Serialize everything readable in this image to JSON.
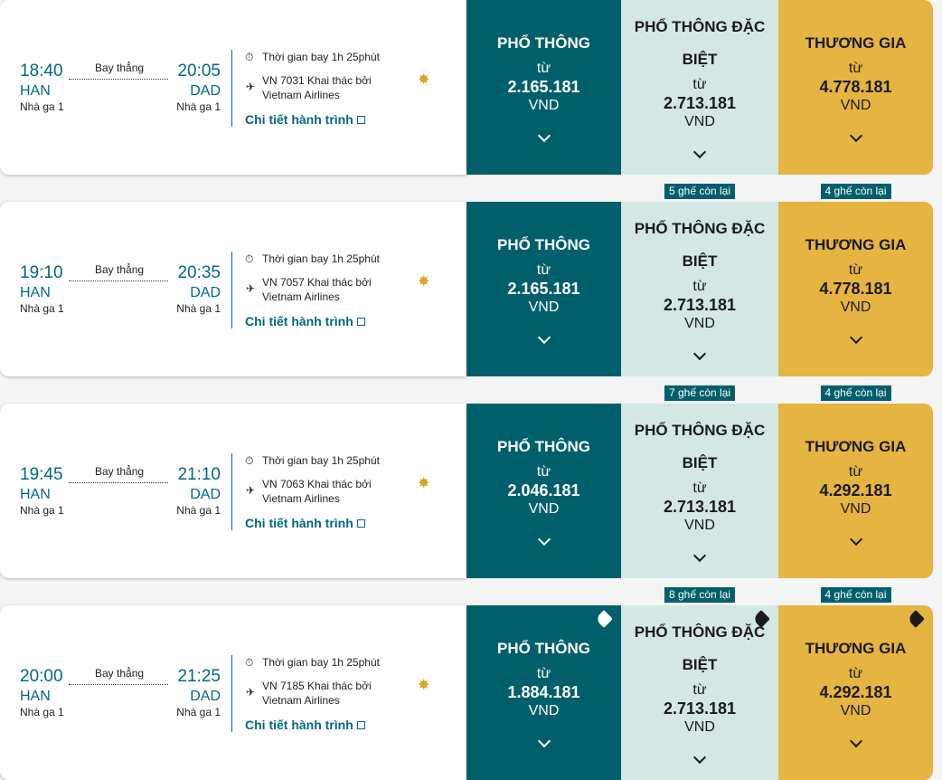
{
  "flights": [
    {
      "depart_time": "18:40",
      "origin": "HAN",
      "origin_terminal": "Nhà ga 1",
      "stop": "Bay thẳng",
      "arrive_time": "20:05",
      "destination": "DAD",
      "destination_terminal": "Nhà ga 1",
      "duration": "Thời gian bay 1h 25phút",
      "flight": "VN 7031 Khai thác bởi",
      "airline": "Vietnam Airlines",
      "details_link": "Chi tiết hành trình",
      "fares": [
        {
          "class": "PHỔ THÔNG",
          "from": "từ",
          "price": "2.165.181",
          "currency": "VND"
        },
        {
          "class": "PHỔ THÔNG ĐẶC BIỆT",
          "from": "từ",
          "price": "2.713.181",
          "currency": "VND"
        },
        {
          "class": "THƯƠNG GIA",
          "from": "từ",
          "price": "4.778.181",
          "currency": "VND"
        }
      ]
    },
    {
      "depart_time": "19:10",
      "origin": "HAN",
      "origin_terminal": "Nhà ga 1",
      "stop": "Bay thẳng",
      "arrive_time": "20:35",
      "destination": "DAD",
      "destination_terminal": "Nhà ga 1",
      "duration": "Thời gian bay 1h 25phút",
      "flight": "VN 7057 Khai thác bởi",
      "airline": "Vietnam Airlines",
      "details_link": "Chi tiết hành trình",
      "fares": [
        {
          "class": "PHỔ THÔNG",
          "from": "từ",
          "price": "2.165.181",
          "currency": "VND"
        },
        {
          "class": "PHỔ THÔNG ĐẶC BIỆT",
          "from": "từ",
          "price": "2.713.181",
          "currency": "VND",
          "seats_left": "5 ghế còn lại"
        },
        {
          "class": "THƯƠNG GIA",
          "from": "từ",
          "price": "4.778.181",
          "currency": "VND",
          "seats_left": "4 ghế còn lại"
        }
      ]
    },
    {
      "depart_time": "19:45",
      "origin": "HAN",
      "origin_terminal": "Nhà ga 1",
      "stop": "Bay thẳng",
      "arrive_time": "21:10",
      "destination": "DAD",
      "destination_terminal": "Nhà ga 1",
      "duration": "Thời gian bay 1h 25phút",
      "flight": "VN 7063 Khai thác bởi",
      "airline": "Vietnam Airlines",
      "details_link": "Chi tiết hành trình",
      "fares": [
        {
          "class": "PHỔ THÔNG",
          "from": "từ",
          "price": "2.046.181",
          "currency": "VND"
        },
        {
          "class": "PHỔ THÔNG ĐẶC BIỆT",
          "from": "từ",
          "price": "2.713.181",
          "currency": "VND",
          "seats_left": "7 ghế còn lại"
        },
        {
          "class": "THƯƠNG GIA",
          "from": "từ",
          "price": "4.292.181",
          "currency": "VND",
          "seats_left": "4 ghế còn lại"
        }
      ]
    },
    {
      "depart_time": "20:00",
      "origin": "HAN",
      "origin_terminal": "Nhà ga 1",
      "stop": "Bay thẳng",
      "arrive_time": "21:25",
      "destination": "DAD",
      "destination_terminal": "Nhà ga 1",
      "duration": "Thời gian bay 1h 25phút",
      "flight": "VN 7185 Khai thác bởi",
      "airline": "Vietnam Airlines",
      "details_link": "Chi tiết hành trình",
      "fares": [
        {
          "class": "PHỔ THÔNG",
          "from": "từ",
          "price": "1.884.181",
          "currency": "VND"
        },
        {
          "class": "PHỔ THÔNG ĐẶC BIỆT",
          "from": "từ",
          "price": "2.713.181",
          "currency": "VND",
          "seats_left": "8 ghế còn lại"
        },
        {
          "class": "THƯƠNG GIA",
          "from": "từ",
          "price": "4.292.181",
          "currency": "VND",
          "seats_left": "4 ghế còn lại"
        }
      ]
    }
  ]
}
